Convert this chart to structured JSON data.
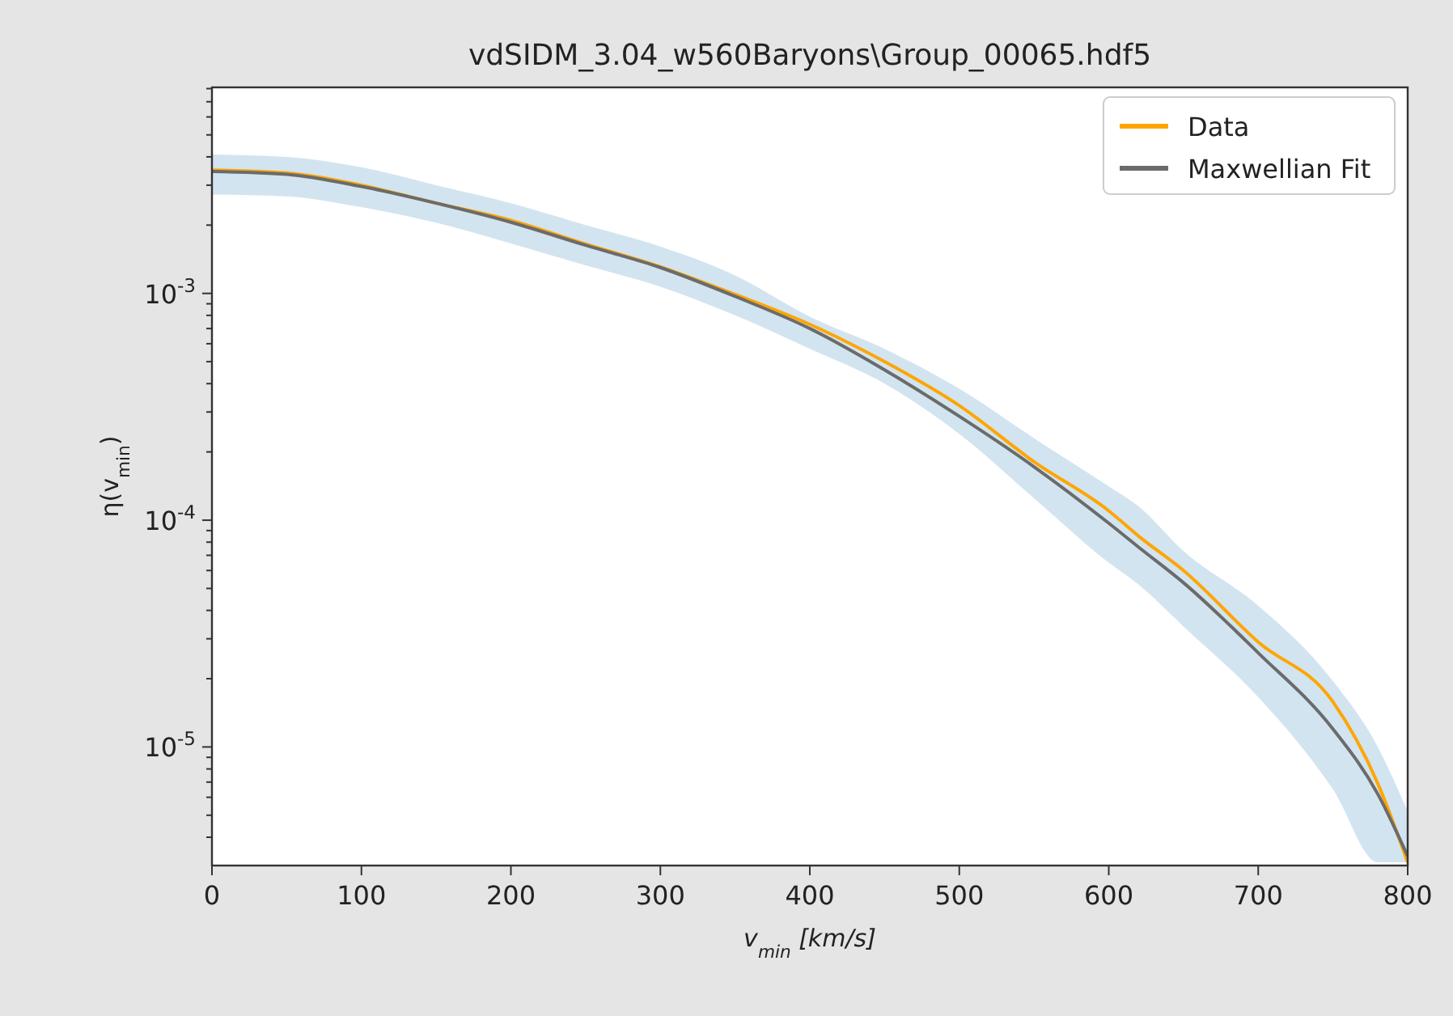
{
  "chart_data": {
    "type": "line",
    "title": "vdSIDM_3.04_w560Baryons\\Group_00065.hdf5",
    "xlabel": "v$_{min}$ [km/s]",
    "ylabel": "η(v$_{min}$)",
    "log": "y",
    "legend": "top right",
    "xlim": [
      0,
      800
    ],
    "xticks": [
      0,
      100,
      200,
      300,
      400,
      500,
      600,
      700,
      800
    ],
    "ylim": [
      3e-06,
      0.0081
    ],
    "yticks": [
      {
        "value": 1e-05,
        "label": "10$^{-5}$"
      },
      {
        "value": 0.0001,
        "label": "10$^{-4}$"
      },
      {
        "value": 0.001,
        "label": "10$^{-3}$"
      },
      {
        "value": 4e-06,
        "label": null
      },
      {
        "value": 5e-06,
        "label": null
      },
      {
        "value": 6e-06,
        "label": null
      },
      {
        "value": 7e-06,
        "label": null
      },
      {
        "value": 8e-06,
        "label": null
      },
      {
        "value": 9e-06,
        "label": null
      },
      {
        "value": 2e-05,
        "label": null
      },
      {
        "value": 3e-05,
        "label": null
      },
      {
        "value": 4e-05,
        "label": null
      },
      {
        "value": 5e-05,
        "label": null
      },
      {
        "value": 6e-05,
        "label": null
      },
      {
        "value": 7e-05,
        "label": null
      },
      {
        "value": 8e-05,
        "label": null
      },
      {
        "value": 9e-05,
        "label": null
      },
      {
        "value": 0.0002,
        "label": null
      },
      {
        "value": 0.0003,
        "label": null
      },
      {
        "value": 0.0004,
        "label": null
      },
      {
        "value": 0.0005,
        "label": null
      },
      {
        "value": 0.0006,
        "label": null
      },
      {
        "value": 0.0007,
        "label": null
      },
      {
        "value": 0.0008,
        "label": null
      },
      {
        "value": 0.0009,
        "label": null
      },
      {
        "value": 0.002,
        "label": null
      },
      {
        "value": 0.003,
        "label": null
      },
      {
        "value": 0.004,
        "label": null
      },
      {
        "value": 0.005,
        "label": null
      },
      {
        "value": 0.006,
        "label": null
      },
      {
        "value": 0.007,
        "label": null
      },
      {
        "value": 0.008,
        "label": null
      }
    ],
    "x": [
      0,
      50,
      100,
      150,
      200,
      250,
      300,
      350,
      400,
      450,
      500,
      550,
      600,
      620,
      650,
      700,
      750,
      780,
      800
    ],
    "series": [
      {
        "name": "Data",
        "color": "#ffa500",
        "values": [
          0.0035,
          0.0034,
          0.003,
          0.0025,
          0.0021,
          0.00165,
          0.00131,
          0.00099,
          0.00073,
          0.0005,
          0.00032,
          0.000181,
          0.00011,
          8.5e-05,
          6e-05,
          2.9e-05,
          1.58e-05,
          6.9e-06,
          3.1e-06
        ],
        "upper": [
          0.0041,
          0.004,
          0.0036,
          0.003,
          0.0025,
          0.002,
          0.00161,
          0.0012,
          0.00079,
          0.00057,
          0.00038,
          0.00023,
          0.000141,
          0.000115,
          7.3e-05,
          4.2e-05,
          1.95e-05,
          1e-05,
          5.2e-06
        ],
        "lower": [
          0.00273,
          0.00268,
          0.0024,
          0.00205,
          0.00166,
          0.00133,
          0.00107,
          0.0008,
          0.00057,
          0.0004,
          0.00024,
          0.000125,
          6.5e-05,
          5.2e-05,
          3.4e-05,
          1.66e-05,
          6.5e-06,
          3.1e-06,
          3.1e-06
        ]
      },
      {
        "name": "Maxwellian Fit",
        "color": "#6b6b6b",
        "values": [
          0.00345,
          0.00335,
          0.00296,
          0.0025,
          0.00206,
          0.00163,
          0.0013,
          0.00097,
          0.0007,
          0.00046,
          0.000287,
          0.000172,
          9.7e-05,
          7.6e-05,
          5.3e-05,
          2.6e-05,
          1.2e-05,
          6.2e-06,
          3.3e-06
        ]
      }
    ]
  }
}
